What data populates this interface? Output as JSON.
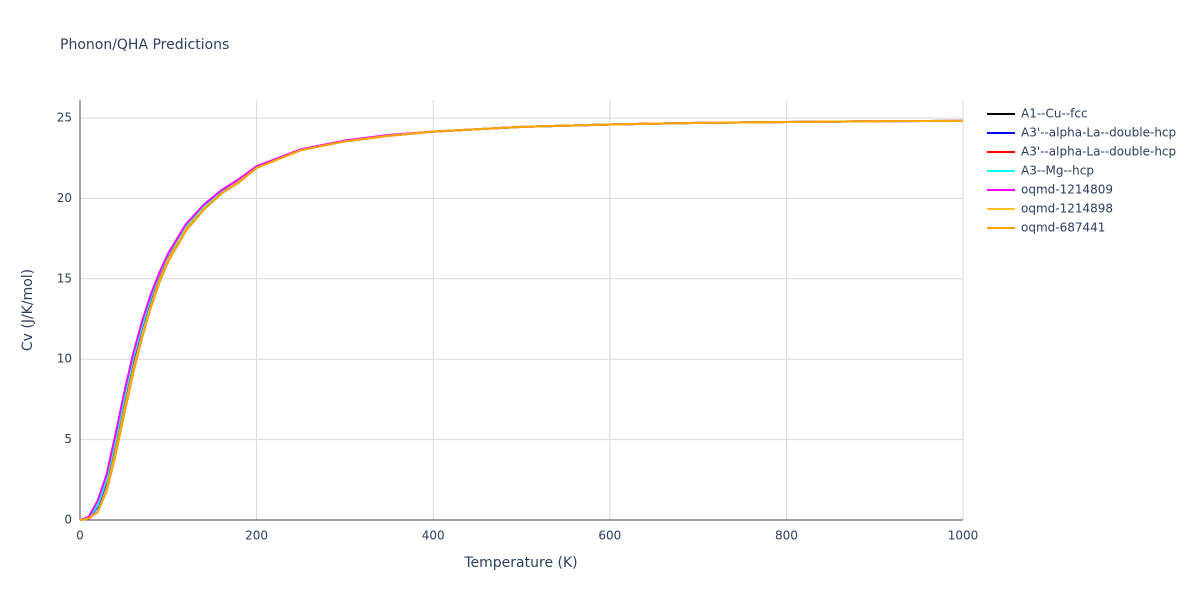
{
  "chart_data": {
    "type": "line",
    "title": "Phonon/QHA Predictions",
    "x_label": "Temperature (K)",
    "y_label": "Cv (J/K/mol)",
    "x": [
      0,
      10,
      20,
      30,
      40,
      50,
      60,
      70,
      80,
      90,
      100,
      120,
      140,
      160,
      180,
      200,
      250,
      300,
      350,
      400,
      500,
      600,
      700,
      800,
      900,
      1000
    ],
    "xlim": [
      0,
      1000
    ],
    "xticks": [
      0,
      200,
      400,
      600,
      800,
      1000
    ],
    "ylim": [
      0,
      26.12
    ],
    "yticks": [
      0,
      5,
      10,
      15,
      20,
      25
    ],
    "grid": true,
    "series": [
      {
        "name": "A1--Cu--fcc",
        "color": "#000000",
        "values": [
          0,
          0.1,
          0.5,
          1.8,
          4.0,
          6.6,
          9.1,
          11.3,
          13.2,
          14.8,
          16.1,
          18.0,
          19.3,
          20.3,
          21.0,
          21.9,
          23.0,
          23.55,
          23.9,
          24.15,
          24.45,
          24.6,
          24.7,
          24.75,
          24.8,
          24.82
        ]
      },
      {
        "name": "A3'--alpha-La--double-hcp",
        "color": "#0000ff",
        "values": [
          0,
          0.15,
          0.8,
          2.3,
          4.7,
          7.3,
          9.8,
          11.9,
          13.7,
          15.2,
          16.4,
          18.2,
          19.5,
          20.4,
          21.1,
          21.95,
          23.0,
          23.55,
          23.9,
          24.15,
          24.45,
          24.6,
          24.7,
          24.75,
          24.8,
          24.82
        ]
      },
      {
        "name": "A3'--alpha-La--double-hcp",
        "color": "#ff0000",
        "values": [
          0,
          0.15,
          0.9,
          2.4,
          4.8,
          7.4,
          9.9,
          12.0,
          13.8,
          15.2,
          16.4,
          18.2,
          19.5,
          20.4,
          21.1,
          21.95,
          23.0,
          23.55,
          23.9,
          24.15,
          24.45,
          24.6,
          24.7,
          24.75,
          24.8,
          24.82
        ]
      },
      {
        "name": "A3--Mg--hcp",
        "color": "#00ffff",
        "values": [
          0,
          0.15,
          0.9,
          2.5,
          4.9,
          7.5,
          10.0,
          12.0,
          13.8,
          15.3,
          16.5,
          18.3,
          19.5,
          20.4,
          21.1,
          21.95,
          23.0,
          23.55,
          23.9,
          24.15,
          24.45,
          24.6,
          24.7,
          24.75,
          24.8,
          24.82
        ]
      },
      {
        "name": "oqmd-1214809",
        "color": "#ff00ff",
        "values": [
          0,
          0.2,
          1.2,
          2.8,
          5.3,
          7.9,
          10.3,
          12.3,
          14.0,
          15.4,
          16.6,
          18.4,
          19.6,
          20.5,
          21.2,
          22.0,
          23.05,
          23.6,
          23.95,
          24.15,
          24.45,
          24.6,
          24.7,
          24.75,
          24.8,
          24.82
        ]
      },
      {
        "name": "oqmd-1214898",
        "color": "#ffc125",
        "values": [
          0,
          0.1,
          0.5,
          1.9,
          4.2,
          6.8,
          9.3,
          11.4,
          13.3,
          14.9,
          16.2,
          18.1,
          19.35,
          20.3,
          21.05,
          21.9,
          23.0,
          23.55,
          23.9,
          24.15,
          24.45,
          24.6,
          24.7,
          24.75,
          24.8,
          24.82
        ]
      },
      {
        "name": "oqmd-687441",
        "color": "#ffa500",
        "values": [
          0,
          0.1,
          0.5,
          1.8,
          4.0,
          6.6,
          9.1,
          11.3,
          13.2,
          14.8,
          16.1,
          18.0,
          19.3,
          20.3,
          21.0,
          21.9,
          23.0,
          23.55,
          23.9,
          24.15,
          24.45,
          24.6,
          24.7,
          24.75,
          24.8,
          24.82
        ]
      }
    ]
  }
}
